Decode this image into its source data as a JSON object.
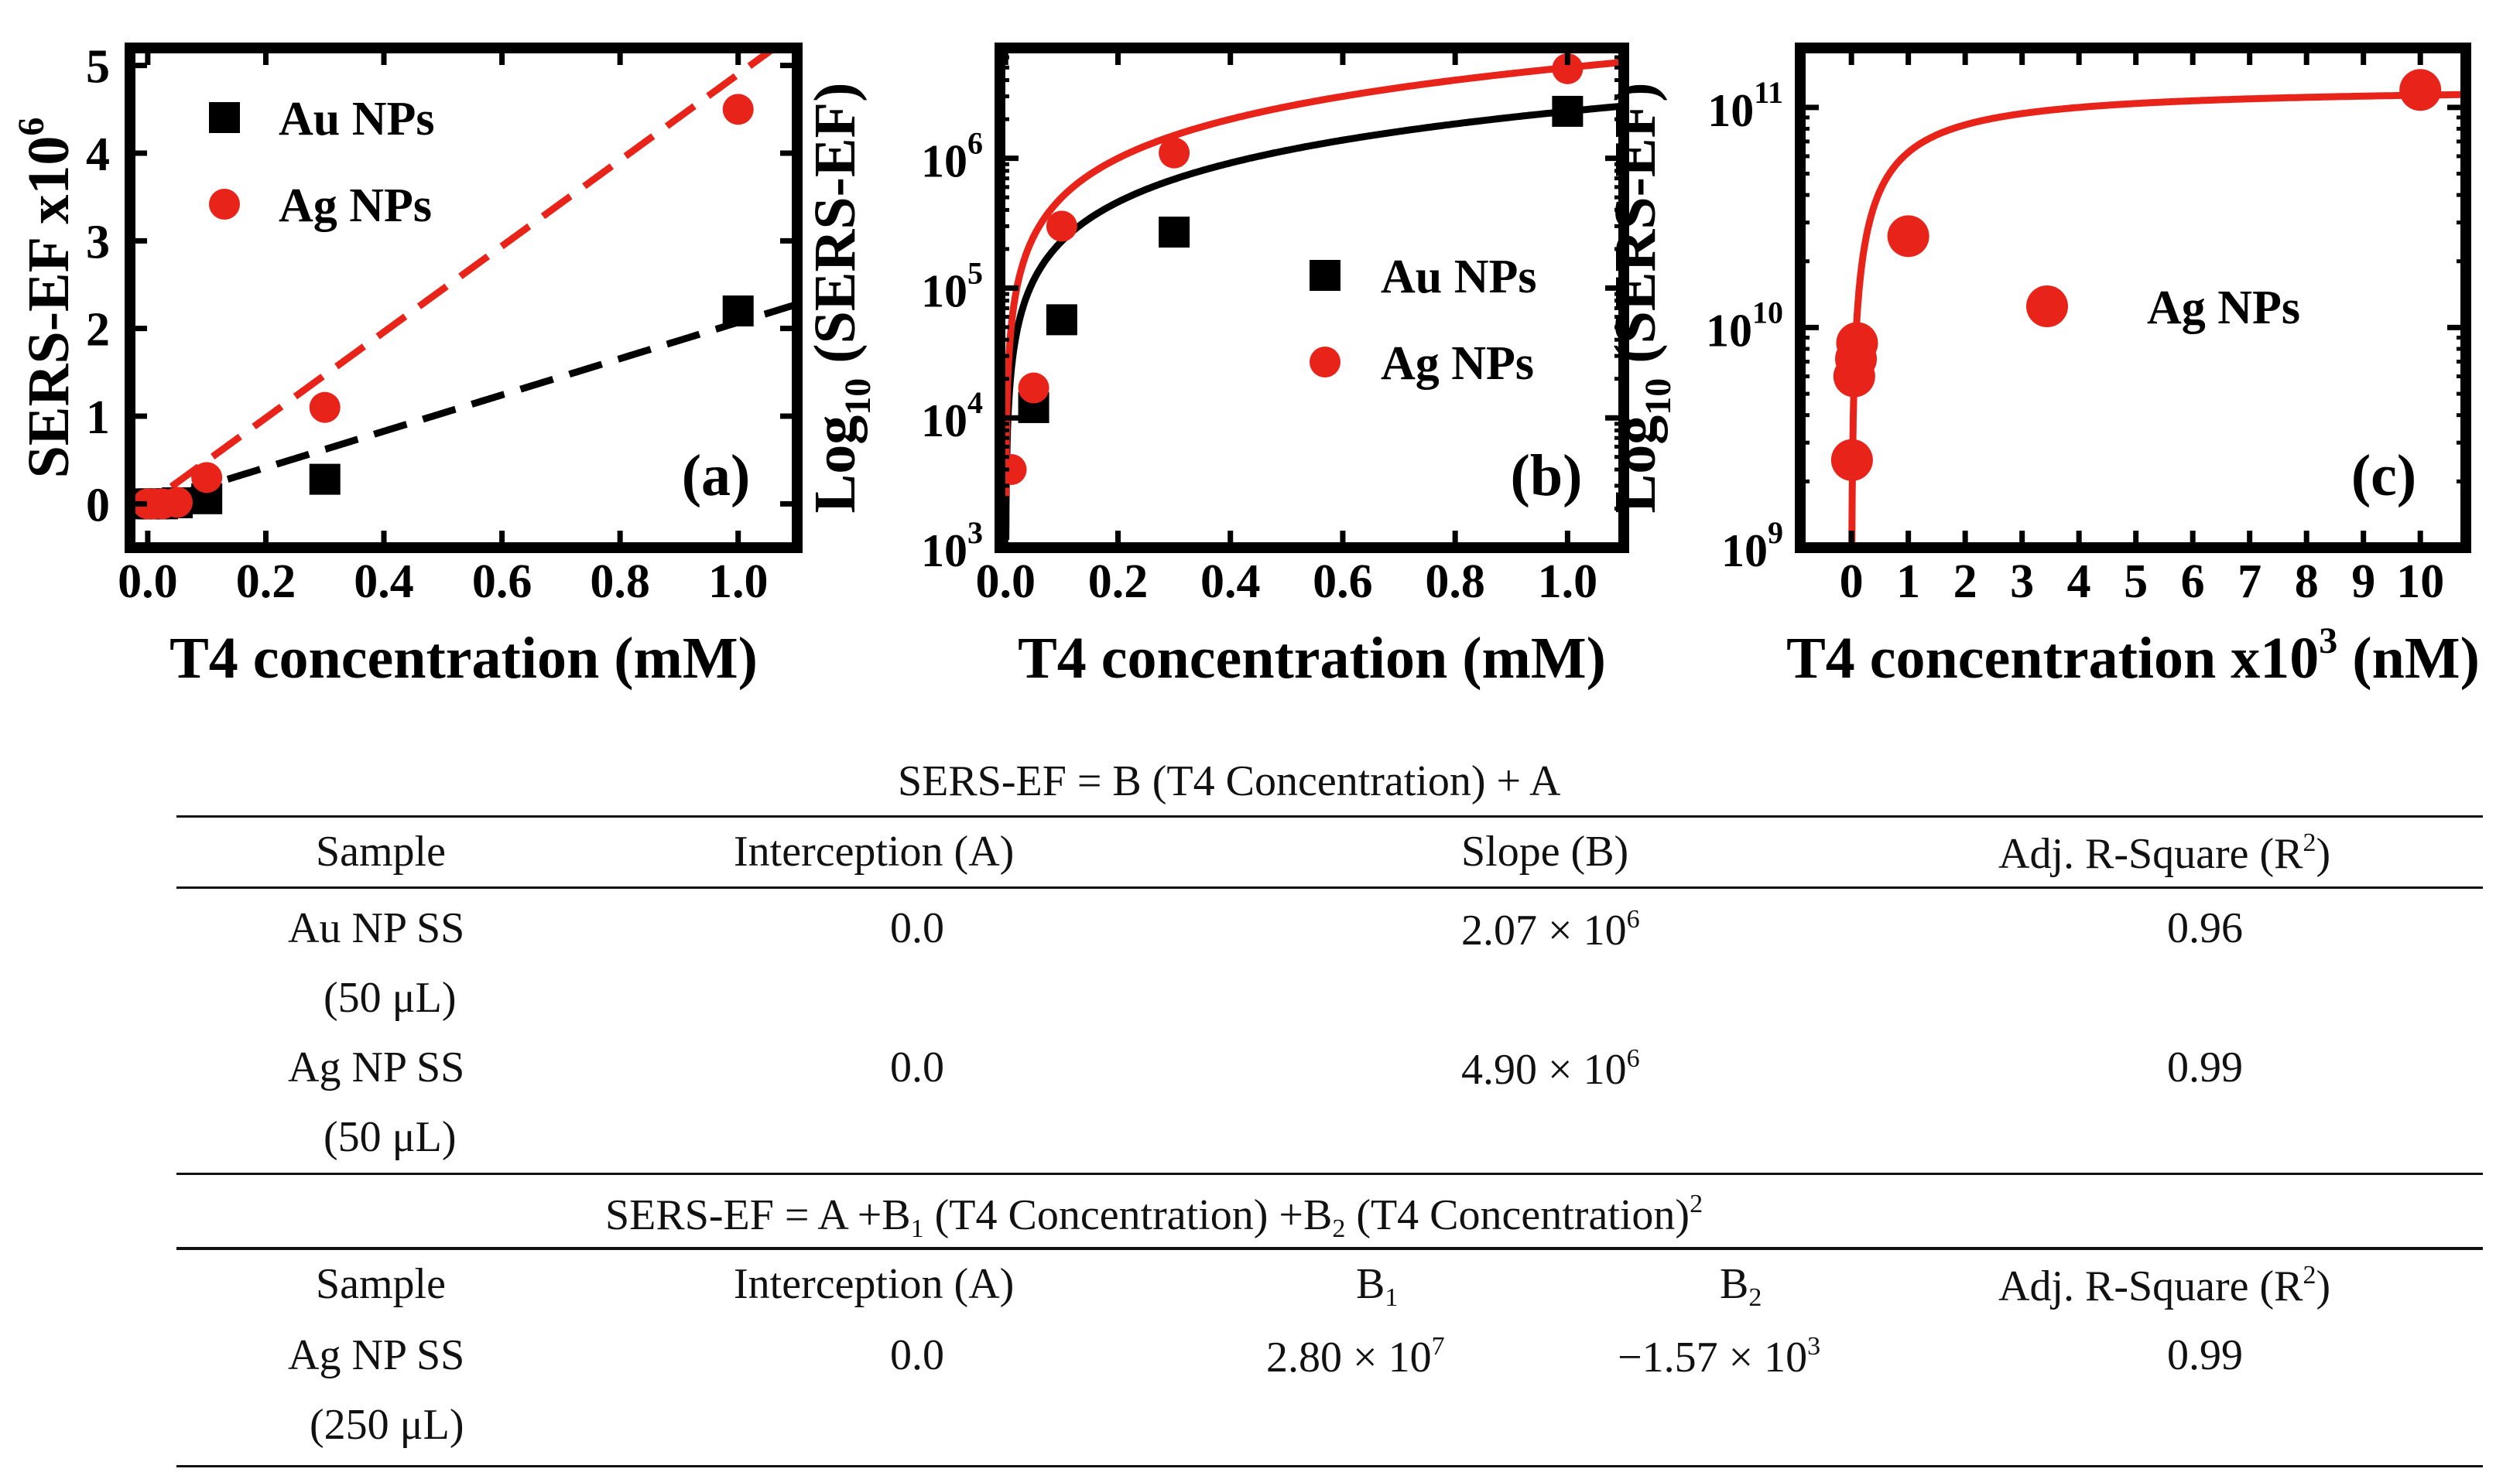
{
  "chart_data": [
    {
      "type": "scatter",
      "panel_label": "(a)",
      "xlabel": "T4 concentration (mM)",
      "ylabel_main": "SERS-EF x10",
      "ylabel_exp": "6",
      "xlim": [
        -0.03,
        1.1
      ],
      "ylim": [
        -0.5,
        5.2
      ],
      "x_ticks": [
        0.0,
        0.2,
        0.4,
        0.6,
        0.8,
        1.0
      ],
      "x_tick_labels": [
        "0.0",
        "0.2",
        "0.4",
        "0.6",
        "0.8",
        "1.0"
      ],
      "y_ticks": [
        0,
        1,
        2,
        3,
        4,
        5
      ],
      "y_tick_labels": [
        "0",
        "1",
        "2",
        "3",
        "4",
        "5"
      ],
      "legend": [
        "Au NPs",
        "Ag NPs"
      ],
      "series": [
        {
          "name": "Au NPs",
          "marker": "square",
          "color": "#000000",
          "x": [
            0.0,
            0.01,
            0.025,
            0.05,
            0.1,
            0.3,
            1.0
          ],
          "y": [
            0.0,
            0.0,
            0.0,
            0.012,
            0.058,
            0.28,
            2.2
          ],
          "fit": {
            "style": "dashed",
            "slope": 2.07,
            "intercept": 0.0
          }
        },
        {
          "name": "Ag NPs",
          "marker": "circle",
          "color": "#e8231a",
          "x": [
            0.0,
            0.01,
            0.025,
            0.05,
            0.1,
            0.3,
            1.0
          ],
          "y": [
            0.0,
            0.0,
            0.0,
            0.017,
            0.3,
            1.1,
            4.5
          ],
          "fit": {
            "style": "dashed",
            "slope": 4.9,
            "intercept": 0.0
          }
        }
      ]
    },
    {
      "type": "scatter",
      "panel_label": "(b)",
      "xlabel": "T4 concentration (mM)",
      "ylabel_main": "Log",
      "ylabel_sub": "10",
      "ylabel_rest": " (SERS-EF)",
      "yscale": "log",
      "xlim": [
        -0.01,
        1.1
      ],
      "ylim_log10": [
        3,
        6.85
      ],
      "x_ticks": [
        0.0,
        0.2,
        0.4,
        0.6,
        0.8,
        1.0
      ],
      "x_tick_labels": [
        "0.0",
        "0.2",
        "0.4",
        "0.6",
        "0.8",
        "1.0"
      ],
      "y_tick_exponents": [
        3,
        4,
        5,
        6
      ],
      "y_tick_base": "10",
      "legend": [
        "Au NPs",
        "Ag NPs"
      ],
      "series": [
        {
          "name": "Au NPs",
          "marker": "square",
          "color": "#000000",
          "x": [
            0.05,
            0.1,
            0.3,
            1.0
          ],
          "y": [
            12000,
            57000,
            270000,
            2300000
          ],
          "fit": {
            "style": "solid",
            "slope": 2300000,
            "intercept": 0.0
          }
        },
        {
          "name": "Ag NPs",
          "marker": "circle",
          "color": "#e8231a",
          "x": [
            0.01,
            0.05,
            0.1,
            0.3,
            1.0
          ],
          "y": [
            4000,
            17000,
            300000,
            1100000,
            4900000
          ],
          "fit": {
            "style": "solid",
            "slope": 5000000,
            "intercept": 0.0
          }
        }
      ]
    },
    {
      "type": "scatter",
      "panel_label": "(c)",
      "xlabel_main": "T4 concentration x10",
      "xlabel_exp": "3",
      "xlabel_rest": " (nM)",
      "ylabel_main": "Log",
      "ylabel_sub": "10",
      "ylabel_rest": " (SERS-EF)",
      "yscale": "log",
      "xlim": [
        -0.9,
        10.8
      ],
      "ylim_log10": [
        9,
        11.27
      ],
      "x_ticks": [
        0,
        1,
        2,
        3,
        4,
        5,
        6,
        7,
        8,
        9,
        10
      ],
      "x_tick_labels": [
        "0",
        "1",
        "2",
        "3",
        "4",
        "5",
        "6",
        "7",
        "8",
        "9",
        "10"
      ],
      "y_tick_exponents": [
        9,
        10,
        11
      ],
      "y_tick_base": "10",
      "legend": [
        "Ag NPs"
      ],
      "series": [
        {
          "name": "Ag NPs",
          "marker": "circle",
          "color": "#e8231a",
          "x": [
            0.01,
            0.05,
            0.08,
            0.1,
            1.0,
            10.0
          ],
          "y": [
            2500000000,
            6000000000,
            7200000000,
            8500000000,
            26000000000,
            120000000000
          ],
          "fit": {
            "style": "solid",
            "model": "saturation",
            "ymax": 125000000000,
            "k": 2.0
          }
        }
      ]
    }
  ],
  "table1": {
    "equation": "SERS-EF = B (T4 Concentration) + A",
    "headers": [
      "Sample",
      "Interception (A)",
      "Slope (B)",
      "Adj. R-Square (R"
    ],
    "header_sup": "2",
    "header_close": ")",
    "rows": [
      {
        "sample_l1": "Au NP SS",
        "sample_l2": "(50 μL)",
        "intercept": "0.0",
        "slope_base": "2.07 × 10",
        "slope_exp": "6",
        "r2": "0.96"
      },
      {
        "sample_l1": "Ag NP SS",
        "sample_l2": "(50 μL)",
        "intercept": "0.0",
        "slope_base": "4.90 × 10",
        "slope_exp": "6",
        "r2": "0.99"
      }
    ]
  },
  "table2": {
    "equation_a": "SERS-EF = A +B",
    "equation_b": " (T4 Concentration) +B",
    "equation_c": " (T4 Concentration)",
    "eq_sub1": "1",
    "eq_sub2": "2",
    "eq_sup": "2",
    "headers": [
      "Sample",
      "Interception (A)",
      "B",
      "B",
      "Adj. R-Square (R"
    ],
    "h_sub1": "1",
    "h_sub2": "2",
    "header_sup": "2",
    "header_close": ")",
    "row": {
      "sample_l1": "Ag NP SS",
      "sample_l2": "(250 μL)",
      "intercept": "0.0",
      "b1_base": "2.80 × 10",
      "b1_exp": "7",
      "b2_base": "−1.57 × 10",
      "b2_exp": "3",
      "r2": "0.99"
    }
  }
}
